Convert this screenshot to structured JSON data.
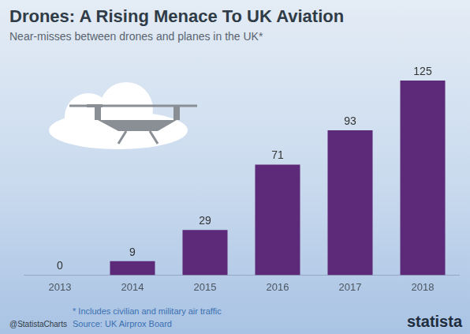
{
  "chart_data": {
    "type": "bar",
    "title": "Drones: A Rising Menace To UK Aviation",
    "subtitle": "Near-misses between drones and planes in the UK*",
    "categories": [
      "2013",
      "2014",
      "2015",
      "2016",
      "2017",
      "2018"
    ],
    "values": [
      0,
      9,
      29,
      71,
      93,
      125
    ],
    "color": "#5c2a78",
    "ylim": [
      0,
      125
    ],
    "grid": false,
    "data_labels": true,
    "tick_labels": "x",
    "note": "* Includes civilian and military air traffic",
    "source": "Source: UK Airprox Board",
    "credit": "@StatistaCharts",
    "brand": "statista"
  }
}
